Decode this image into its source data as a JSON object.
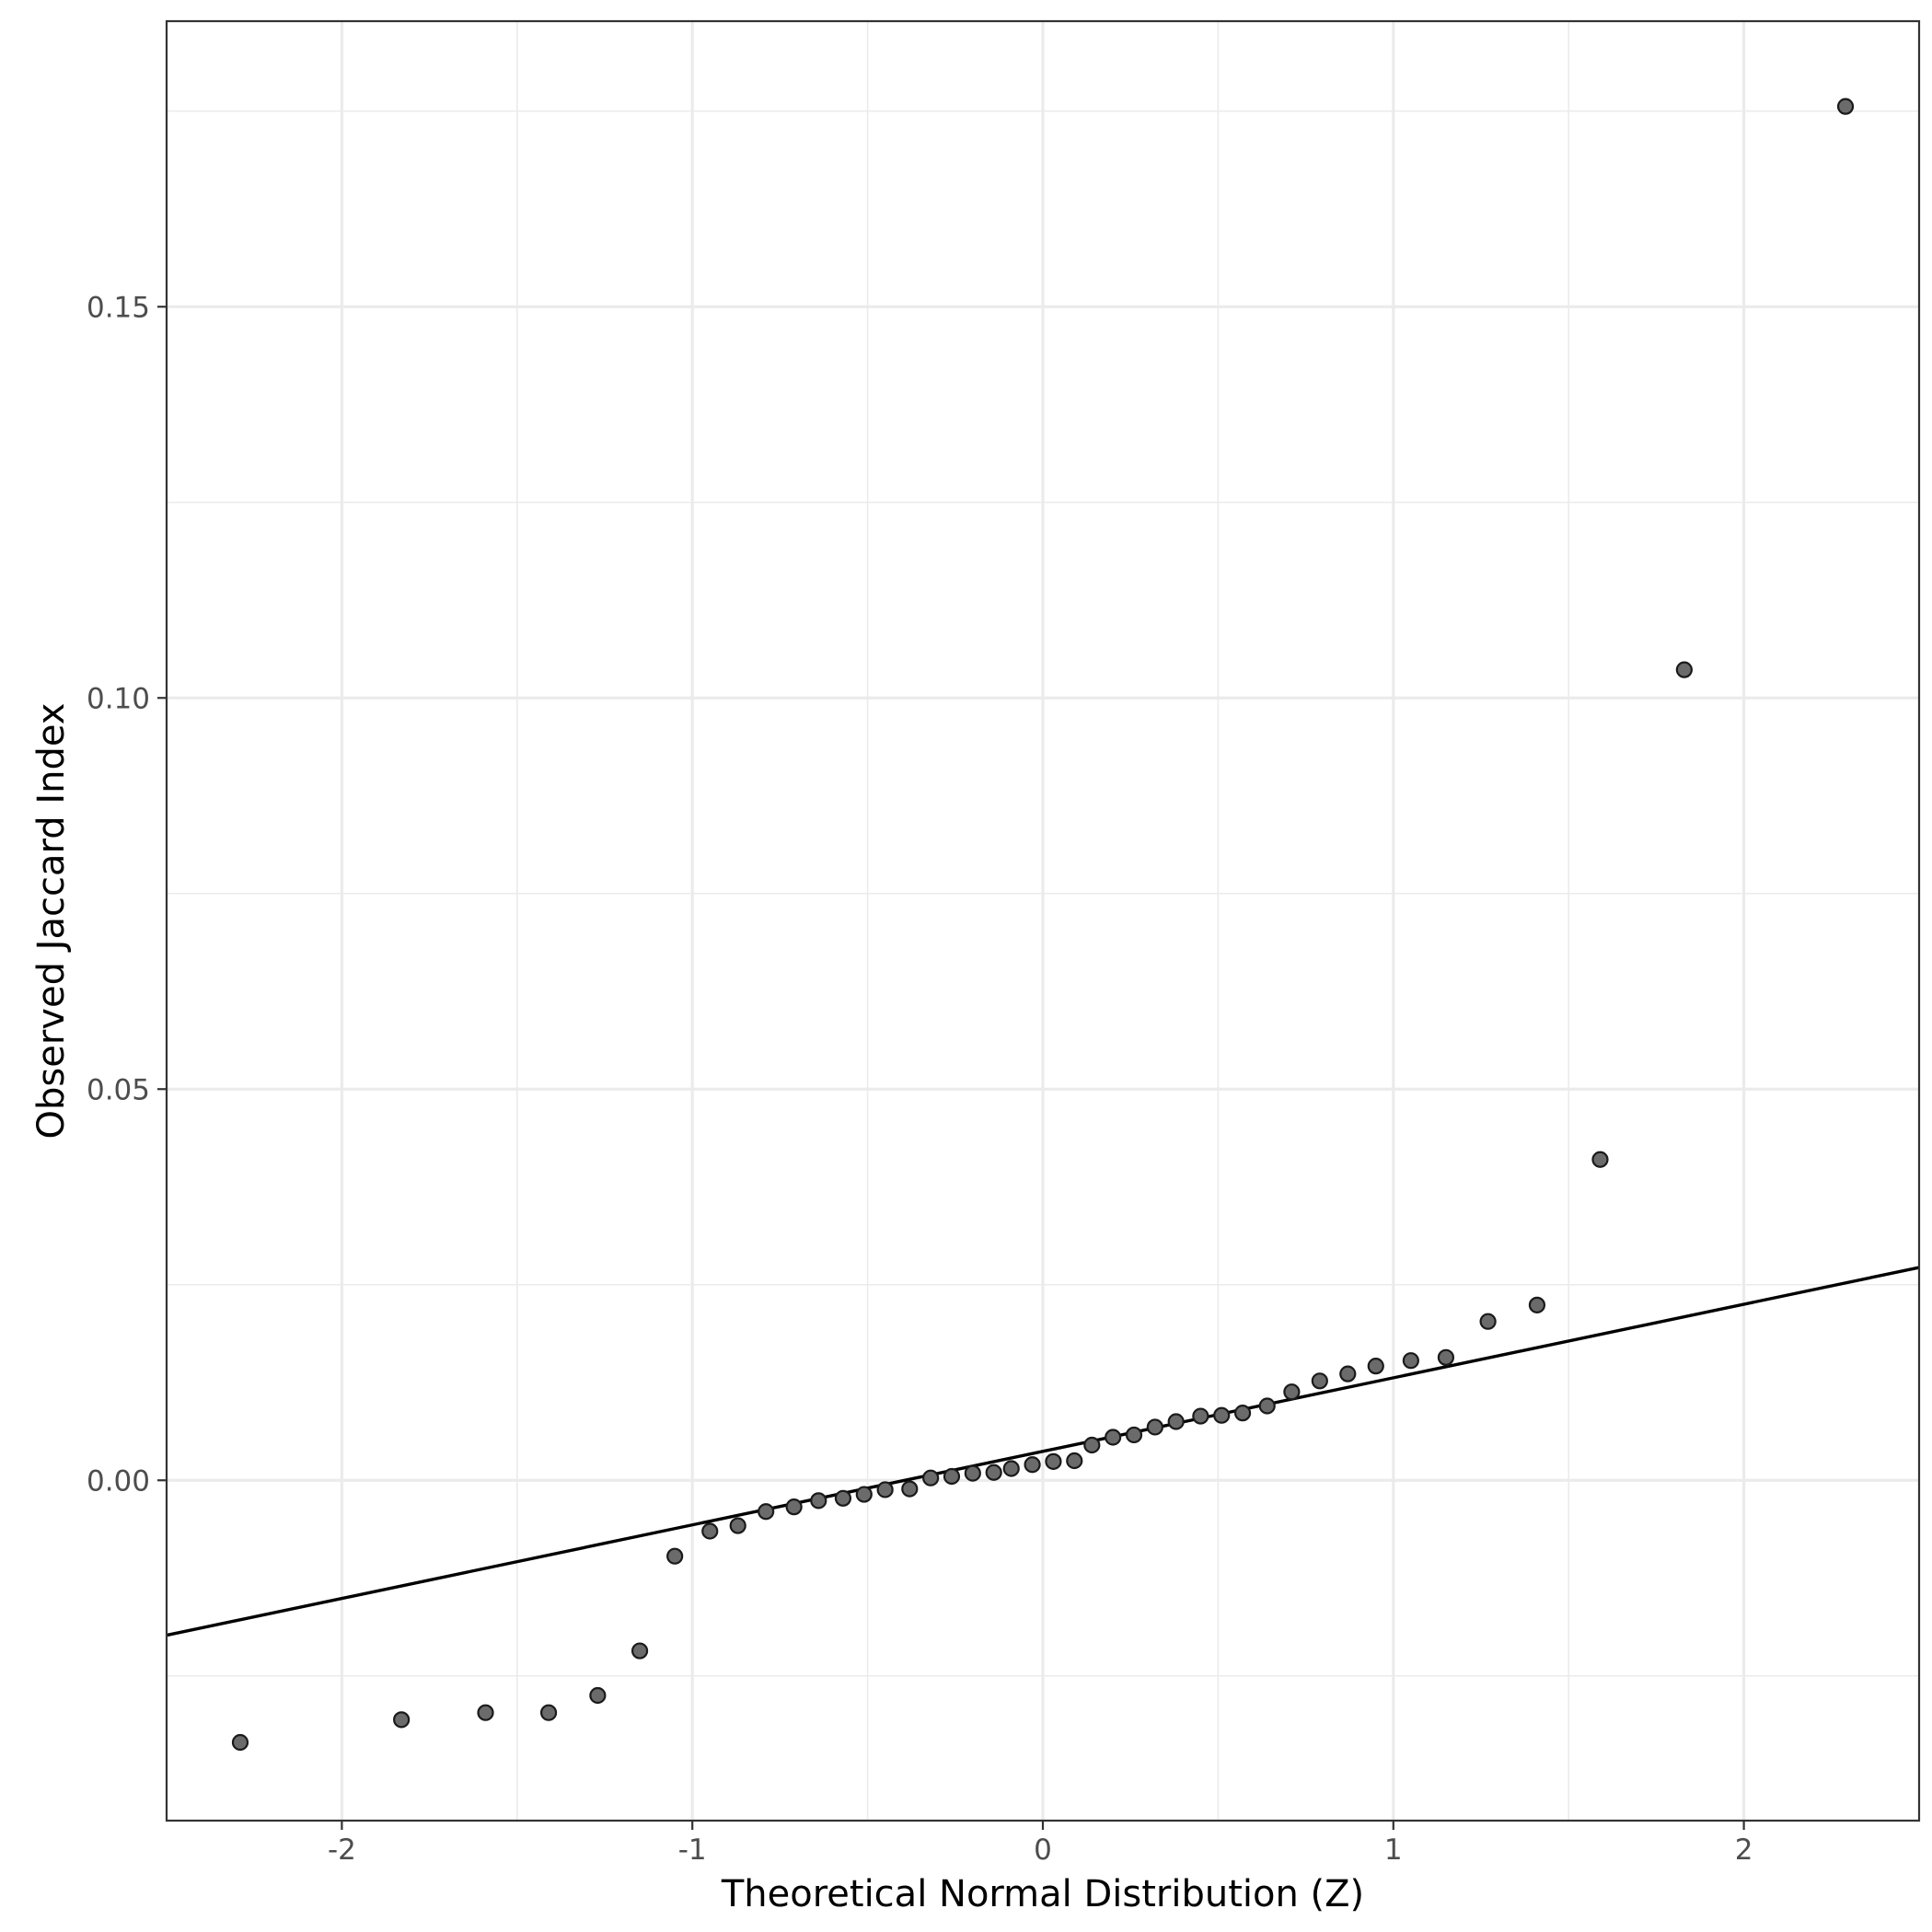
{
  "chart_data": {
    "type": "scatter",
    "title": "",
    "xlabel": "Theoretical Normal Distribution (Z)",
    "ylabel": "Observed Jaccard Index",
    "xlim": [
      -2.5,
      2.5
    ],
    "ylim": [
      -0.0435,
      0.1865
    ],
    "x_ticks": [
      -2,
      -1,
      0,
      1,
      2
    ],
    "x_tick_labels": [
      "-2",
      "-1",
      "0",
      "1",
      "2"
    ],
    "y_ticks": [
      0.0,
      0.05,
      0.1,
      0.15
    ],
    "y_tick_labels": [
      "0.00",
      "0.05",
      "0.10",
      "0.15"
    ],
    "grid": true,
    "legend": "none",
    "colors": {
      "point_fill": "#6b6b6b",
      "point_stroke": "#1a1a1a",
      "line": "#000000",
      "grid": "#ebebeb",
      "panel_border": "#333333"
    },
    "series": [
      {
        "kind": "points",
        "x": [
          -2.29,
          -1.83,
          -1.59,
          -1.41,
          -1.27,
          -1.15,
          -1.05,
          -0.95,
          -0.87,
          -0.79,
          -0.71,
          -0.64,
          -0.57,
          -0.51,
          -0.45,
          -0.38,
          -0.32,
          -0.26,
          -0.2,
          -0.14,
          -0.09,
          -0.03,
          0.03,
          0.09,
          0.14,
          0.2,
          0.26,
          0.32,
          0.38,
          0.45,
          0.51,
          0.57,
          0.64,
          0.71,
          0.79,
          0.87,
          0.95,
          1.05,
          1.15,
          1.27,
          1.41,
          1.59,
          1.83,
          2.29
        ],
        "y": [
          -0.0335,
          -0.0306,
          -0.0297,
          -0.0297,
          -0.0275,
          -0.0218,
          -0.0097,
          -0.0065,
          -0.0058,
          -0.004,
          -0.0034,
          -0.0026,
          -0.0023,
          -0.0018,
          -0.0012,
          -0.0011,
          0.0003,
          0.0005,
          0.0009,
          0.001,
          0.0015,
          0.002,
          0.0024,
          0.0025,
          0.0045,
          0.0055,
          0.0058,
          0.0068,
          0.0075,
          0.0082,
          0.0083,
          0.0086,
          0.0095,
          0.0113,
          0.0127,
          0.0136,
          0.0146,
          0.0153,
          0.0157,
          0.0203,
          0.0224,
          0.041,
          0.1036,
          0.1756
        ]
      },
      {
        "kind": "reference-line",
        "intercept": 0.0037,
        "slope": 0.0094
      }
    ]
  }
}
